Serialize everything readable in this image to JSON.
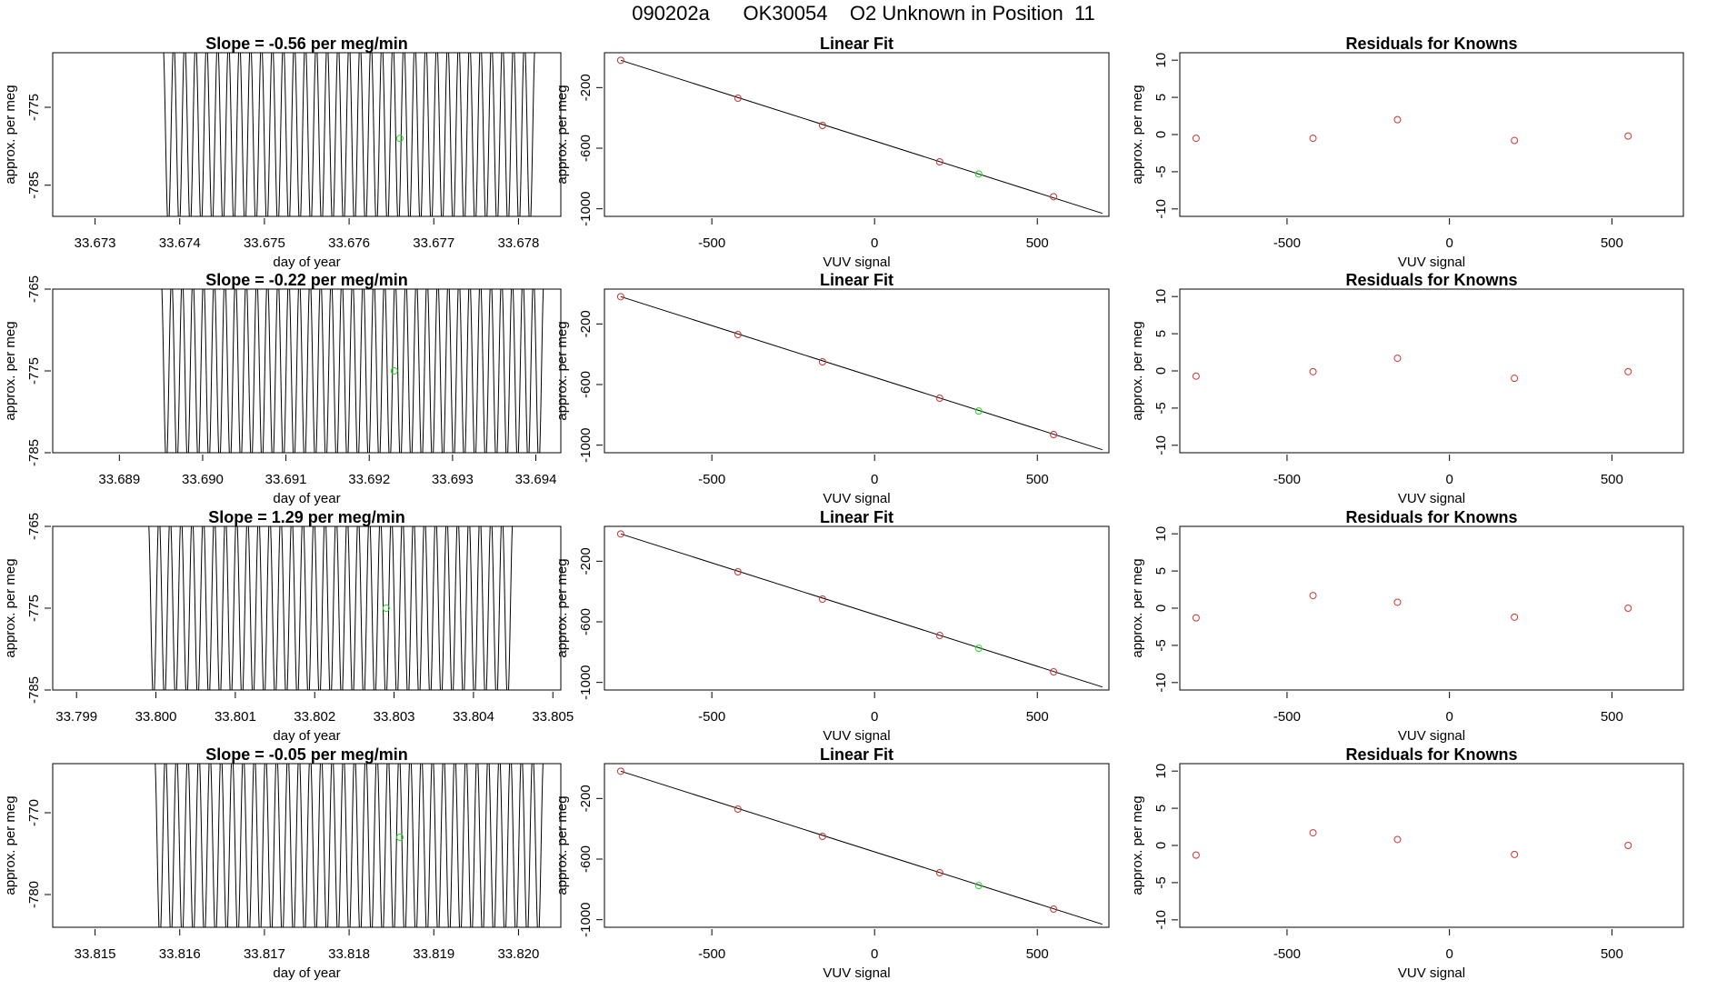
{
  "figure": {
    "title": "090202a      OK30054    O2 Unknown in Position  11"
  },
  "colors": {
    "trace": "#000000",
    "known_point": "#cd3333",
    "unknown_point": "#22dd22",
    "fit_line": "#000000",
    "frame": "#000000"
  },
  "chart_data": [
    {
      "type": "line",
      "row": 1,
      "panel": "trace",
      "title": "Slope =  -0.56  per meg/min",
      "xlabel": "day of year",
      "ylabel": "approx. per meg",
      "xlim": [
        33.6725,
        33.6785
      ],
      "ylim": [
        -789,
        -768
      ],
      "xticks": [
        "33.673",
        "33.674",
        "33.675",
        "33.676",
        "33.677",
        "33.678"
      ],
      "yticks": [
        "-775",
        "-785"
      ],
      "trace": {
        "x_start": 33.6738,
        "x_end": 33.6782,
        "cycles": 34,
        "y_low": -789,
        "y_high": -768
      },
      "unknown_point": {
        "x": 33.6766,
        "y": -779
      }
    },
    {
      "type": "scatter",
      "row": 1,
      "panel": "fit",
      "title": "Linear Fit",
      "xlabel": "VUV signal",
      "ylabel": "approx. per meg",
      "xlim": [
        -830,
        720
      ],
      "ylim": [
        -1050,
        30
      ],
      "xticks": [
        "-500",
        "0",
        "500"
      ],
      "yticks": [
        "-200",
        "-600",
        "-1000"
      ],
      "known": {
        "x": [
          -780,
          -420,
          -160,
          200,
          550
        ],
        "y": [
          -20,
          -270,
          -450,
          -690,
          -920
        ]
      },
      "unknown": {
        "x": 320,
        "y": -770
      },
      "fit_line": {
        "x": [
          -780,
          700
        ],
        "y": [
          -20,
          -1030
        ]
      }
    },
    {
      "type": "scatter",
      "row": 1,
      "panel": "residuals",
      "title": "Residuals for Knowns",
      "xlabel": "VUV signal",
      "ylabel": "approx. per meg",
      "xlim": [
        -830,
        720
      ],
      "ylim": [
        -11,
        11
      ],
      "xticks": [
        "-500",
        "0",
        "500"
      ],
      "yticks": [
        "10",
        "5",
        "0",
        "-5",
        "-10"
      ],
      "x": [
        -780,
        -420,
        -160,
        200,
        550
      ],
      "y": [
        -0.5,
        -0.5,
        2.0,
        -0.8,
        -0.2
      ]
    },
    {
      "type": "line",
      "row": 2,
      "panel": "trace",
      "title": "Slope =  -0.22  per meg/min",
      "xlabel": "day of year",
      "ylabel": "approx. per meg",
      "xlim": [
        33.6882,
        33.6943
      ],
      "ylim": [
        -785,
        -765
      ],
      "xticks": [
        "33.689",
        "33.690",
        "33.691",
        "33.692",
        "33.693",
        "33.694"
      ],
      "yticks": [
        "-765",
        "-775",
        "-785"
      ],
      "trace": {
        "x_start": 33.6895,
        "x_end": 33.6941,
        "cycles": 36,
        "y_low": -785,
        "y_high": -765
      },
      "unknown_point": {
        "x": 33.6923,
        "y": -775
      }
    },
    {
      "type": "scatter",
      "row": 2,
      "panel": "fit",
      "title": "Linear Fit",
      "xlabel": "VUV signal",
      "ylabel": "approx. per meg",
      "xlim": [
        -830,
        720
      ],
      "ylim": [
        -1050,
        30
      ],
      "xticks": [
        "-500",
        "0",
        "500"
      ],
      "yticks": [
        "-200",
        "-600",
        "-1000"
      ],
      "known": {
        "x": [
          -780,
          -420,
          -160,
          200,
          550
        ],
        "y": [
          -20,
          -270,
          -450,
          -690,
          -930
        ]
      },
      "unknown": {
        "x": 320,
        "y": -775
      },
      "fit_line": {
        "x": [
          -780,
          700
        ],
        "y": [
          -20,
          -1030
        ]
      }
    },
    {
      "type": "scatter",
      "row": 2,
      "panel": "residuals",
      "title": "Residuals for Knowns",
      "xlabel": "VUV signal",
      "ylabel": "approx. per meg",
      "xlim": [
        -830,
        720
      ],
      "ylim": [
        -11,
        11
      ],
      "xticks": [
        "-500",
        "0",
        "500"
      ],
      "yticks": [
        "10",
        "5",
        "0",
        "-5",
        "-10"
      ],
      "x": [
        -780,
        -420,
        -160,
        200,
        550
      ],
      "y": [
        -0.7,
        -0.1,
        1.7,
        -1.0,
        -0.1
      ]
    },
    {
      "type": "line",
      "row": 3,
      "panel": "trace",
      "title": "Slope =  1.29  per meg/min",
      "xlabel": "day of year",
      "ylabel": "approx. per meg",
      "xlim": [
        33.7987,
        33.8051
      ],
      "ylim": [
        -785,
        -765
      ],
      "xticks": [
        "33.799",
        "33.800",
        "33.801",
        "33.802",
        "33.803",
        "33.804",
        "33.805"
      ],
      "yticks": [
        "-765",
        "-775",
        "-785"
      ],
      "trace": {
        "x_start": 33.7999,
        "x_end": 33.8045,
        "cycles": 33,
        "y_low": -785,
        "y_high": -765
      },
      "unknown_point": {
        "x": 33.8029,
        "y": -775
      }
    },
    {
      "type": "scatter",
      "row": 3,
      "panel": "fit",
      "title": "Linear Fit",
      "xlabel": "VUV signal",
      "ylabel": "approx. per meg",
      "xlim": [
        -830,
        720
      ],
      "ylim": [
        -1050,
        30
      ],
      "xticks": [
        "-500",
        "0",
        "500"
      ],
      "yticks": [
        "-200",
        "-600",
        "-1000"
      ],
      "known": {
        "x": [
          -780,
          -420,
          -160,
          200,
          550
        ],
        "y": [
          -20,
          -270,
          -450,
          -690,
          -930
        ]
      },
      "unknown": {
        "x": 320,
        "y": -775
      },
      "fit_line": {
        "x": [
          -780,
          700
        ],
        "y": [
          -20,
          -1030
        ]
      }
    },
    {
      "type": "scatter",
      "row": 3,
      "panel": "residuals",
      "title": "Residuals for Knowns",
      "xlabel": "VUV signal",
      "ylabel": "approx. per meg",
      "xlim": [
        -830,
        720
      ],
      "ylim": [
        -11,
        11
      ],
      "xticks": [
        "-500",
        "0",
        "500"
      ],
      "yticks": [
        "10",
        "5",
        "0",
        "-5",
        "-10"
      ],
      "x": [
        -780,
        -420,
        -160,
        200,
        550
      ],
      "y": [
        -1.3,
        1.7,
        0.8,
        -1.2,
        0.0
      ]
    },
    {
      "type": "line",
      "row": 4,
      "panel": "trace",
      "title": "Slope =  -0.05  per meg/min",
      "xlabel": "day of year",
      "ylabel": "approx. per meg",
      "xlim": [
        33.8145,
        33.8205
      ],
      "ylim": [
        -784,
        -764
      ],
      "xticks": [
        "33.815",
        "33.816",
        "33.817",
        "33.818",
        "33.819",
        "33.820"
      ],
      "yticks": [
        "-770",
        "-780"
      ],
      "trace": {
        "x_start": 33.8157,
        "x_end": 33.8203,
        "cycles": 35,
        "y_low": -784,
        "y_high": -764
      },
      "unknown_point": {
        "x": 33.8186,
        "y": -773
      }
    },
    {
      "type": "scatter",
      "row": 4,
      "panel": "fit",
      "title": "Linear Fit",
      "xlabel": "VUV signal",
      "ylabel": "approx. per meg",
      "xlim": [
        -830,
        720
      ],
      "ylim": [
        -1050,
        30
      ],
      "xticks": [
        "-500",
        "0",
        "500"
      ],
      "yticks": [
        "-200",
        "-600",
        "-1000"
      ],
      "known": {
        "x": [
          -780,
          -420,
          -160,
          200,
          550
        ],
        "y": [
          -20,
          -270,
          -450,
          -690,
          -930
        ]
      },
      "unknown": {
        "x": 320,
        "y": -775
      },
      "fit_line": {
        "x": [
          -780,
          700
        ],
        "y": [
          -20,
          -1030
        ]
      }
    },
    {
      "type": "scatter",
      "row": 4,
      "panel": "residuals",
      "title": "Residuals for Knowns",
      "xlabel": "VUV signal",
      "ylabel": "approx. per meg",
      "xlim": [
        -830,
        720
      ],
      "ylim": [
        -11,
        11
      ],
      "xticks": [
        "-500",
        "0",
        "500"
      ],
      "yticks": [
        "10",
        "5",
        "0",
        "-5",
        "-10"
      ],
      "x": [
        -780,
        -420,
        -160,
        200,
        550
      ],
      "y": [
        -1.3,
        1.7,
        0.8,
        -1.2,
        0.0
      ]
    }
  ]
}
